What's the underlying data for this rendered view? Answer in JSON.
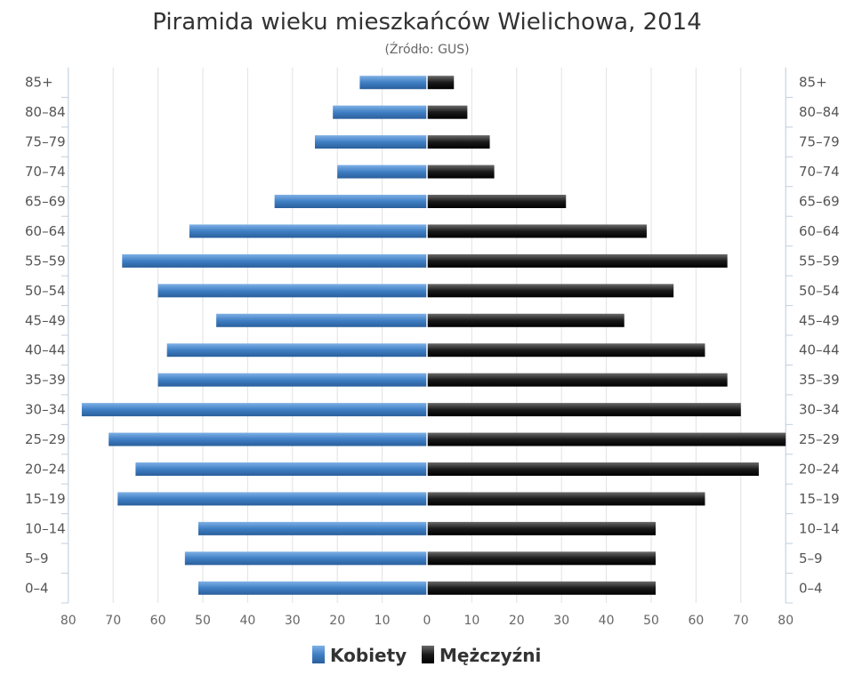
{
  "chart_data": {
    "type": "bar",
    "orientation": "horizontal",
    "layout": "population-pyramid",
    "title": "Piramida wieku mieszkańców Wielichowa, 2014",
    "subtitle": "(Źródło: GUS)",
    "categories": [
      "0-4",
      "5-9",
      "10-14",
      "15-19",
      "20-24",
      "25-29",
      "30-34",
      "35-39",
      "40-44",
      "45-49",
      "50-54",
      "55-59",
      "60-64",
      "65-69",
      "70-74",
      "75-79",
      "80-84",
      "85+"
    ],
    "series": [
      {
        "name": "Kobiety",
        "side": "left",
        "color": "#3f7fc4",
        "values": [
          51,
          54,
          51,
          69,
          65,
          71,
          77,
          60,
          58,
          47,
          60,
          68,
          53,
          34,
          20,
          25,
          21,
          15
        ]
      },
      {
        "name": "Mężczyźni",
        "side": "right",
        "color": "#1a1a1a",
        "values": [
          51,
          51,
          51,
          62,
          74,
          80,
          70,
          67,
          62,
          44,
          55,
          67,
          49,
          31,
          15,
          14,
          9,
          6
        ]
      }
    ],
    "x_ticks": [
      80,
      70,
      60,
      50,
      40,
      30,
      20,
      10,
      0,
      10,
      20,
      30,
      40,
      50,
      60,
      70,
      80
    ],
    "xlim": [
      -80,
      80
    ],
    "grid": true,
    "legend_position": "bottom-center"
  }
}
